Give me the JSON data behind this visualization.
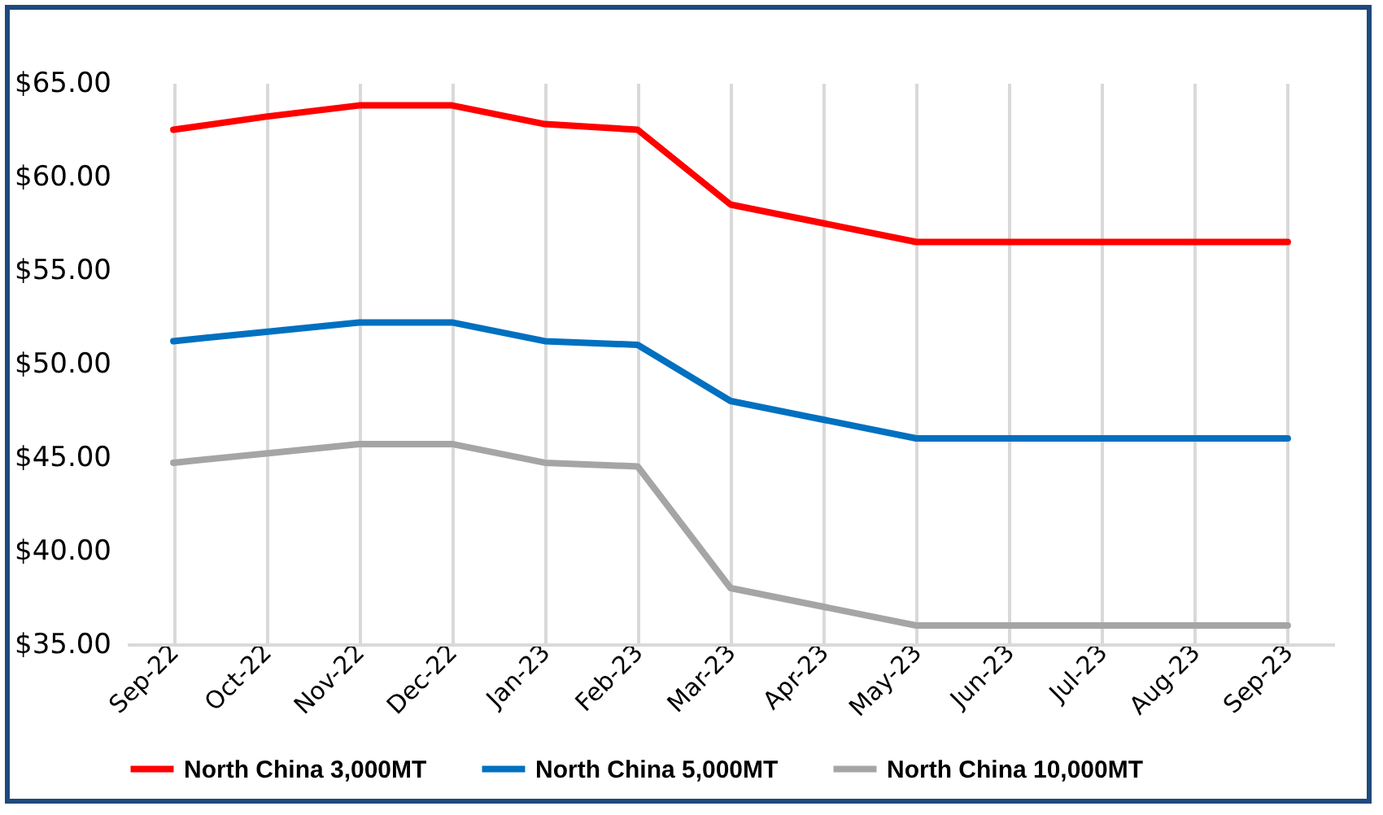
{
  "chart_data": {
    "type": "line",
    "categories": [
      "Sep-22",
      "Oct-22",
      "Nov-22",
      "Dec-22",
      "Jan-23",
      "Feb-23",
      "Mar-23",
      "Apr-23",
      "May-23",
      "Jun-23",
      "Jul-23",
      "Aug-23",
      "Sep-23"
    ],
    "series": [
      {
        "name": "North China 3,000MT",
        "color": "#ff0000",
        "values": [
          62.5,
          63.2,
          63.8,
          63.8,
          62.8,
          62.5,
          58.5,
          57.5,
          56.5,
          56.5,
          56.5,
          56.5,
          56.5
        ]
      },
      {
        "name": "North China 5,000MT",
        "color": "#0070c0",
        "values": [
          51.2,
          51.7,
          52.2,
          52.2,
          51.2,
          51.0,
          48.0,
          47.0,
          46.0,
          46.0,
          46.0,
          46.0,
          46.0
        ]
      },
      {
        "name": "North China 10,000MT",
        "color": "#a5a5a5",
        "values": [
          44.7,
          45.2,
          45.7,
          45.7,
          44.7,
          44.5,
          38.0,
          37.0,
          36.0,
          36.0,
          36.0,
          36.0,
          36.0
        ]
      }
    ],
    "ylim": [
      35,
      65
    ],
    "yticks": [
      {
        "value": 35,
        "label": "$35.00"
      },
      {
        "value": 40,
        "label": "$40.00"
      },
      {
        "value": 45,
        "label": "$45.00"
      },
      {
        "value": 50,
        "label": "$50.00"
      },
      {
        "value": 55,
        "label": "$55.00"
      },
      {
        "value": 60,
        "label": "$60.00"
      },
      {
        "value": 65,
        "label": "$65.00"
      }
    ],
    "grid": "x",
    "legend": "bottom",
    "marker": "none",
    "line_style": "solid"
  }
}
